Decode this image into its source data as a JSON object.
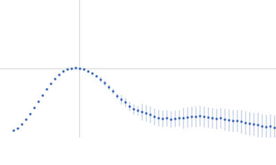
{
  "chart_data": {
    "type": "scatter",
    "xlim": [
      0,
      6
    ],
    "ylim": [
      0,
      2
    ],
    "vline": 1.73,
    "hline": 1,
    "reference_color": "#cccccc",
    "x": [
      0.3,
      0.39,
      0.48,
      0.57,
      0.66,
      0.75,
      0.84,
      0.93,
      1.02,
      1.11,
      1.2,
      1.29,
      1.38,
      1.47,
      1.56,
      1.65,
      1.74,
      1.83,
      1.92,
      2.01,
      2.1,
      2.19,
      2.28,
      2.37,
      2.46,
      2.55,
      2.64,
      2.73,
      2.82,
      2.91,
      3.0,
      3.09,
      3.18,
      3.27,
      3.36,
      3.45,
      3.54,
      3.63,
      3.72,
      3.81,
      3.9,
      3.99,
      4.08,
      4.17,
      4.26,
      4.35,
      4.44,
      4.53,
      4.62,
      4.71,
      4.8,
      4.89,
      4.98,
      5.07,
      5.16,
      5.25,
      5.34,
      5.43,
      5.52,
      5.61,
      5.7,
      5.79,
      5.88,
      5.97
    ],
    "series": [
      {
        "color": "#3a66b8",
        "error_color": "#a9bde3",
        "values": [
          0.1,
          0.13,
          0.19,
          0.26,
          0.34,
          0.43,
          0.52,
          0.61,
          0.7,
          0.78,
          0.85,
          0.91,
          0.96,
          0.99,
          1.0,
          1.01,
          1.0,
          0.99,
          0.96,
          0.93,
          0.89,
          0.84,
          0.79,
          0.73,
          0.67,
          0.6,
          0.55,
          0.51,
          0.45,
          0.41,
          0.39,
          0.37,
          0.35,
          0.33,
          0.3,
          0.28,
          0.27,
          0.28,
          0.26,
          0.27,
          0.28,
          0.28,
          0.29,
          0.3,
          0.3,
          0.31,
          0.3,
          0.29,
          0.28,
          0.27,
          0.28,
          0.26,
          0.25,
          0.24,
          0.24,
          0.23,
          0.21,
          0.2,
          0.19,
          0.18,
          0.16,
          0.15,
          0.16,
          0.14
        ],
        "errors": [
          0.01,
          0.01,
          0.01,
          0.01,
          0.01,
          0.01,
          0.01,
          0.01,
          0.01,
          0.01,
          0.01,
          0.02,
          0.02,
          0.02,
          0.02,
          0.02,
          0.02,
          0.02,
          0.02,
          0.02,
          0.02,
          0.04,
          0.04,
          0.04,
          0.04,
          0.04,
          0.07,
          0.07,
          0.07,
          0.07,
          0.07,
          0.12,
          0.12,
          0.12,
          0.12,
          0.12,
          0.12,
          0.12,
          0.12,
          0.12,
          0.12,
          0.15,
          0.15,
          0.15,
          0.15,
          0.15,
          0.15,
          0.15,
          0.15,
          0.15,
          0.15,
          0.16,
          0.16,
          0.16,
          0.16,
          0.17,
          0.17,
          0.17,
          0.17,
          0.18,
          0.18,
          0.18,
          0.18,
          0.18
        ]
      }
    ]
  }
}
